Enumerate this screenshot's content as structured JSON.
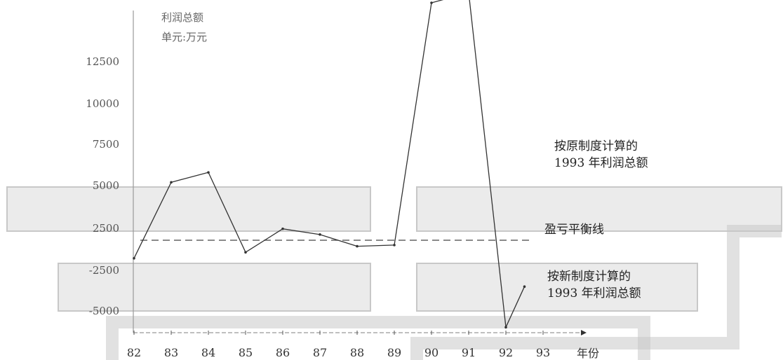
{
  "chart_data": {
    "type": "line",
    "title": "利润总额",
    "ylabel": "单元:万元",
    "xlabel": "年份",
    "categories": [
      "82",
      "83",
      "84",
      "85",
      "86",
      "87",
      "88",
      "89",
      "90",
      "91",
      "92",
      "93"
    ],
    "y_ticks": [
      12500,
      10000,
      7500,
      5000,
      2500,
      -2500,
      -5000
    ],
    "y_tick_labels": [
      "12500",
      "10000",
      "7500",
      "5000",
      "2500",
      "-2500",
      "-5000"
    ],
    "series": [
      {
        "points": [
          {
            "x": "82",
            "y": -1500
          },
          {
            "x": "83",
            "y": 5200
          },
          {
            "x": "84",
            "y": 5800
          },
          {
            "x": "85",
            "y": -1000
          },
          {
            "x": "86",
            "y": 2400
          },
          {
            "x": "87",
            "y": 1200
          },
          {
            "x": "88",
            "y": -500
          },
          {
            "x": "89",
            "y": -400
          },
          {
            "x": "90",
            "y": 16000
          },
          {
            "x": "91",
            "y": 16600
          },
          {
            "x": "92",
            "y": -6000
          },
          {
            "x": "92.5",
            "y": -3500
          }
        ]
      }
    ],
    "breakeven_y": 0,
    "annotations": [
      {
        "key": "original",
        "lines": [
          "按原制度计算的",
          "1993 年利润总额"
        ]
      },
      {
        "key": "breakeven",
        "lines": [
          "盈亏平衡线"
        ]
      },
      {
        "key": "new",
        "lines": [
          "按新制度计算的",
          "1993 年利润总额"
        ]
      }
    ],
    "grid": false
  },
  "colors": {
    "line": "#333333",
    "axis": "#999999",
    "dashed": "#444444",
    "overlay_fill": "#ebebeb",
    "overlay_stroke": "#c8c8c8"
  }
}
